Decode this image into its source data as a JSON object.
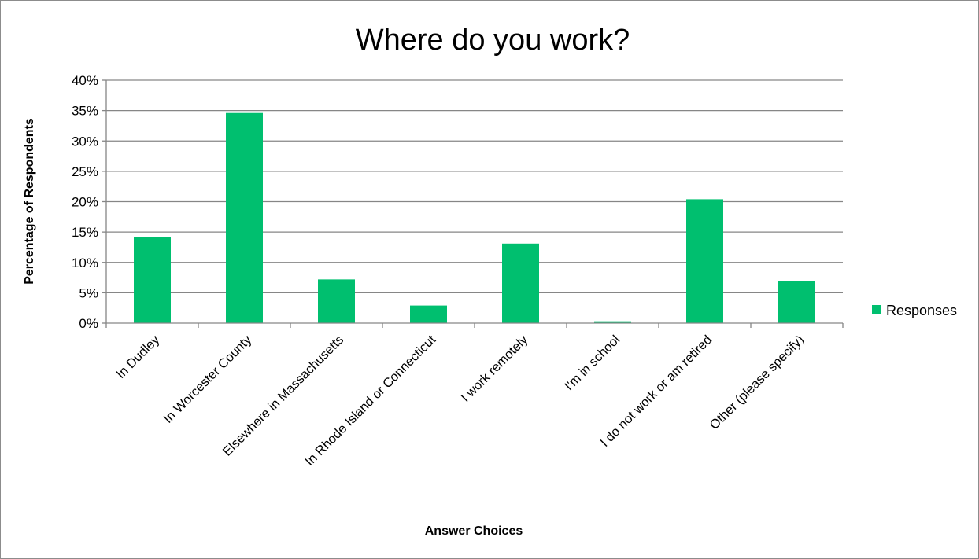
{
  "chart_data": {
    "type": "bar",
    "title": "Where do you work?",
    "xlabel": "Answer Choices",
    "ylabel": "Percentage of Respondents",
    "categories": [
      "In Dudley",
      "In Worcester County",
      "Elsewhere in Massachusetts",
      "In Rhode Island or Connecticut",
      "I work remotely",
      "I'm in school",
      "I do not work or am retired",
      "Other (please specify)"
    ],
    "series": [
      {
        "name": "Responses",
        "values": [
          14.2,
          34.6,
          7.2,
          2.9,
          13.1,
          0.3,
          20.4,
          6.9
        ]
      }
    ],
    "ylim": [
      0,
      40
    ],
    "yticks": [
      "0%",
      "5%",
      "10%",
      "15%",
      "20%",
      "25%",
      "30%",
      "35%",
      "40%"
    ],
    "grid": true,
    "legend_position": "right",
    "colors": {
      "bar": "#00BF6F",
      "grid": "#868686",
      "axis": "#868686"
    }
  }
}
